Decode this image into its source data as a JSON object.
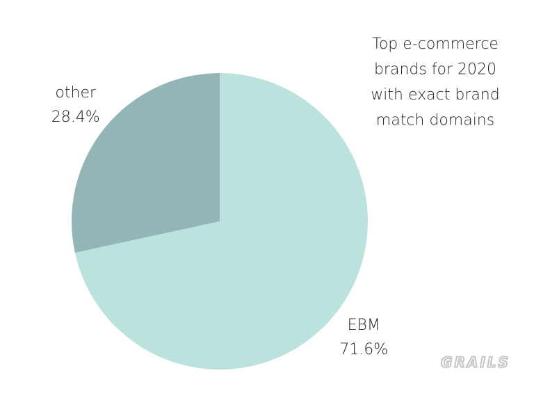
{
  "chart_data": {
    "type": "pie",
    "title": [
      "Top e-commerce",
      "brands for 2020",
      "with exact brand",
      "match domains"
    ],
    "categories": [
      "EBM",
      "other"
    ],
    "values": [
      71.6,
      28.4
    ],
    "value_labels": [
      "71.6%",
      "28.4%"
    ],
    "colors": [
      "#bce2de",
      "#93b5b8"
    ],
    "watermark": "GRAILS"
  }
}
